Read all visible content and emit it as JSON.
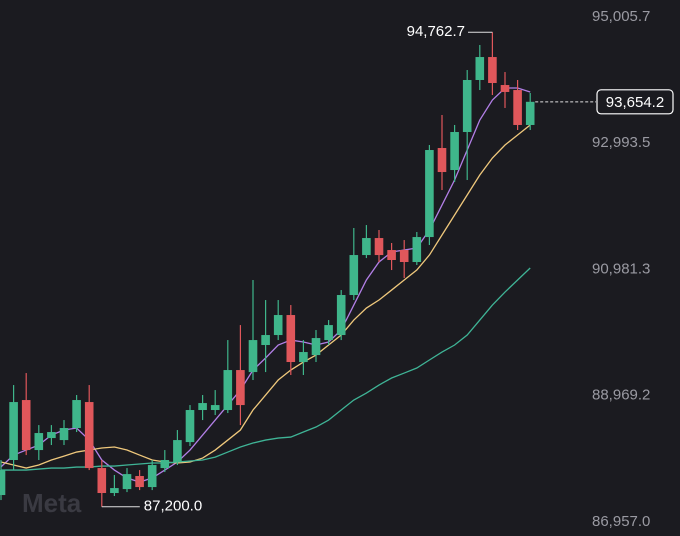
{
  "chart_data": {
    "type": "candlestick",
    "watermark": "Meta",
    "ylim": [
      86734,
      95277
    ],
    "yticks": [
      {
        "value": 95005.7,
        "label": "95,005.7"
      },
      {
        "value": 92993.5,
        "label": "92,993.5"
      },
      {
        "value": 90981.3,
        "label": "90,981.3"
      },
      {
        "value": 88969.2,
        "label": "88,969.2"
      },
      {
        "value": 86957.0,
        "label": "86,957.0"
      }
    ],
    "up_color": "#3fb68b",
    "down_color": "#e0575b",
    "candles": {
      "open": [
        87387,
        87945,
        88901,
        88104,
        88295,
        88263,
        88455,
        88869,
        87817,
        87419,
        87482,
        87690,
        87514,
        87817,
        87913,
        88231,
        88742,
        88742,
        88742,
        89379,
        89347,
        89778,
        89937,
        90256,
        89507,
        89618,
        89857,
        89937,
        90575,
        91212,
        91483,
        91292,
        91292,
        91101,
        91499,
        92918,
        92567,
        93173,
        94002,
        94368,
        93922,
        93842,
        93285
      ],
      "high": [
        87945,
        89140,
        89331,
        88502,
        88502,
        88582,
        88981,
        89140,
        87945,
        87706,
        87817,
        87785,
        87945,
        88104,
        88423,
        88821,
        88981,
        89060,
        89857,
        90096,
        90814,
        90495,
        90495,
        90415,
        89857,
        90017,
        90176,
        90654,
        91643,
        91690,
        91611,
        91404,
        91451,
        91579,
        92966,
        93444,
        93285,
        94161,
        94560,
        94762.7,
        94129,
        94002,
        93795
      ],
      "low": [
        87307,
        87785,
        88024,
        87945,
        88184,
        88184,
        88391,
        87785,
        87200,
        87371,
        87434,
        87466,
        87466,
        87753,
        87865,
        88168,
        88582,
        88662,
        88694,
        88502,
        89220,
        89347,
        89857,
        89300,
        89300,
        89507,
        89778,
        89857,
        90495,
        91164,
        91101,
        90973,
        90846,
        91053,
        91372,
        92248,
        92376,
        92408,
        93842,
        93763,
        93556,
        93205,
        93205
      ],
      "close": [
        87785,
        88869,
        88104,
        88375,
        88391,
        88455,
        88901,
        87817,
        87419,
        87498,
        87721,
        87514,
        87865,
        87945,
        88263,
        88742,
        88853,
        88821,
        89379,
        88821,
        89857,
        89937,
        90256,
        89507,
        89666,
        89889,
        90096,
        90575,
        91212,
        91483,
        91212,
        91133,
        91101,
        91499,
        92886,
        92535,
        93173,
        94002,
        94368,
        93954,
        93811,
        93285,
        93654.2
      ]
    },
    "series": [
      {
        "color": "#b27fe6",
        "values": [
          87836,
          88024,
          88104,
          88184,
          88343,
          88423,
          88455,
          88263,
          87945,
          87785,
          87658,
          87594,
          87658,
          87785,
          87913,
          88104,
          88343,
          88582,
          88821,
          89060,
          89379,
          89571,
          89778,
          89857,
          89826,
          89778,
          89826,
          90017,
          90415,
          90814,
          91101,
          91260,
          91292,
          91324,
          91611,
          92009,
          92408,
          92886,
          93364,
          93683,
          93874,
          93874,
          93811
        ]
      },
      {
        "color": "#efc87c",
        "values": [
          87913,
          87865,
          87817,
          87865,
          87945,
          88008,
          88072,
          88104,
          88136,
          88152,
          88104,
          88024,
          87945,
          87913,
          87897,
          87913,
          87976,
          88104,
          88263,
          88423,
          88742,
          88981,
          89220,
          89379,
          89507,
          89618,
          89778,
          89937,
          90176,
          90367,
          90495,
          90654,
          90814,
          90973,
          91212,
          91531,
          91850,
          92169,
          92487,
          92758,
          92966,
          93125,
          93285
        ]
      },
      {
        "color": "#3fb496",
        "values": [
          87785,
          87785,
          87785,
          87801,
          87817,
          87817,
          87833,
          87833,
          87849,
          87849,
          87865,
          87881,
          87897,
          87897,
          87913,
          87929,
          87945,
          87992,
          88072,
          88152,
          88216,
          88263,
          88295,
          88311,
          88391,
          88471,
          88582,
          88742,
          88901,
          89013,
          89140,
          89252,
          89331,
          89411,
          89539,
          89666,
          89778,
          89937,
          90176,
          90415,
          90622,
          90814,
          91005
        ]
      }
    ],
    "annotations": [
      {
        "value": 94762.7,
        "label": "94,762.7"
      },
      {
        "value": 87200,
        "label": "87,200.0"
      },
      {
        "value": 93654.2,
        "label": "93,654.2"
      }
    ]
  }
}
